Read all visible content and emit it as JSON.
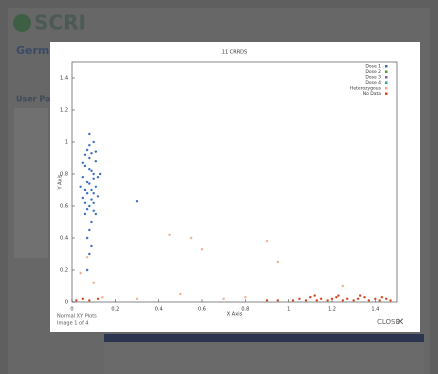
{
  "background": {
    "logo": "SCRI",
    "heading": "Germina",
    "panel_title": "User Pan"
  },
  "lightbox": {
    "caption": "Normal XY Plots",
    "counter": "Image 1 of 4",
    "close": "CLOSE"
  },
  "chart_data": {
    "type": "scatter",
    "title": "11 CRRDS",
    "x_label": "X Axis",
    "y_label": "Y Axis",
    "xlim": [
      0,
      1.5
    ],
    "ylim": [
      0,
      1.5
    ],
    "xticks": [
      0,
      0.2,
      0.4,
      0.6,
      0.8,
      1,
      1.2,
      1.4
    ],
    "yticks": [
      0,
      0.2,
      0.4,
      0.6,
      0.8,
      1,
      1.2,
      1.4
    ],
    "legend": "upper right",
    "series": [
      {
        "name": "Dose 1",
        "color": "#3a6fc4",
        "x": [
          0.06,
          0.08,
          0.1,
          0.07,
          0.09,
          0.05,
          0.11,
          0.08,
          0.1,
          0.06,
          0.09,
          0.07,
          0.1,
          0.08,
          0.12,
          0.05,
          0.09,
          0.07,
          0.11,
          0.06,
          0.1,
          0.08,
          0.07,
          0.09,
          0.12,
          0.04,
          0.08,
          0.1,
          0.06,
          0.09,
          0.11,
          0.05,
          0.13,
          0.08,
          0.07,
          0.1,
          0.06,
          0.09,
          0.08,
          0.11,
          0.3,
          0.08,
          0.07
        ],
        "y": [
          0.85,
          0.9,
          0.8,
          0.75,
          0.7,
          0.65,
          0.72,
          0.6,
          0.62,
          0.55,
          0.5,
          0.95,
          1.0,
          1.05,
          0.78,
          0.78,
          0.82,
          0.68,
          0.88,
          0.92,
          0.57,
          0.45,
          0.4,
          0.35,
          0.66,
          0.72,
          0.74,
          0.77,
          0.62,
          0.93,
          0.55,
          0.87,
          0.8,
          0.83,
          0.58,
          0.68,
          0.7,
          0.64,
          0.98,
          0.94,
          0.63,
          0.3,
          0.2
        ]
      },
      {
        "name": "Dose 2",
        "color": "#5a9a3a",
        "x": [],
        "y": []
      },
      {
        "name": "Dose 3",
        "color": "#8a5ab0",
        "x": [],
        "y": []
      },
      {
        "name": "Dose 4",
        "color": "#2aa0a0",
        "x": [],
        "y": []
      },
      {
        "name": "Heterozygous",
        "color": "#f0b090",
        "x": [
          0.04,
          0.1,
          0.55,
          0.5,
          0.9,
          0.7,
          0.8,
          1.25,
          0.95,
          0.07,
          0.14,
          0.3,
          0.6,
          0.45
        ],
        "y": [
          0.18,
          0.12,
          0.4,
          0.05,
          0.38,
          0.02,
          0.03,
          0.1,
          0.25,
          0.28,
          0.03,
          0.02,
          0.33,
          0.42
        ]
      },
      {
        "name": "No Data",
        "color": "#d9441c",
        "x": [
          0.02,
          0.05,
          0.08,
          0.12,
          1.02,
          1.05,
          1.08,
          1.1,
          1.13,
          1.15,
          1.18,
          1.2,
          1.22,
          1.25,
          1.27,
          1.3,
          1.32,
          1.35,
          1.37,
          1.4,
          1.42,
          1.45,
          1.47,
          1.12,
          1.23,
          1.33,
          1.43,
          0.9,
          0.95
        ],
        "y": [
          0.01,
          0.02,
          0.01,
          0.02,
          0.01,
          0.02,
          0.01,
          0.03,
          0.01,
          0.02,
          0.01,
          0.02,
          0.03,
          0.01,
          0.02,
          0.01,
          0.02,
          0.03,
          0.01,
          0.02,
          0.01,
          0.02,
          0.01,
          0.04,
          0.04,
          0.04,
          0.03,
          0.01,
          0.01
        ]
      }
    ]
  }
}
